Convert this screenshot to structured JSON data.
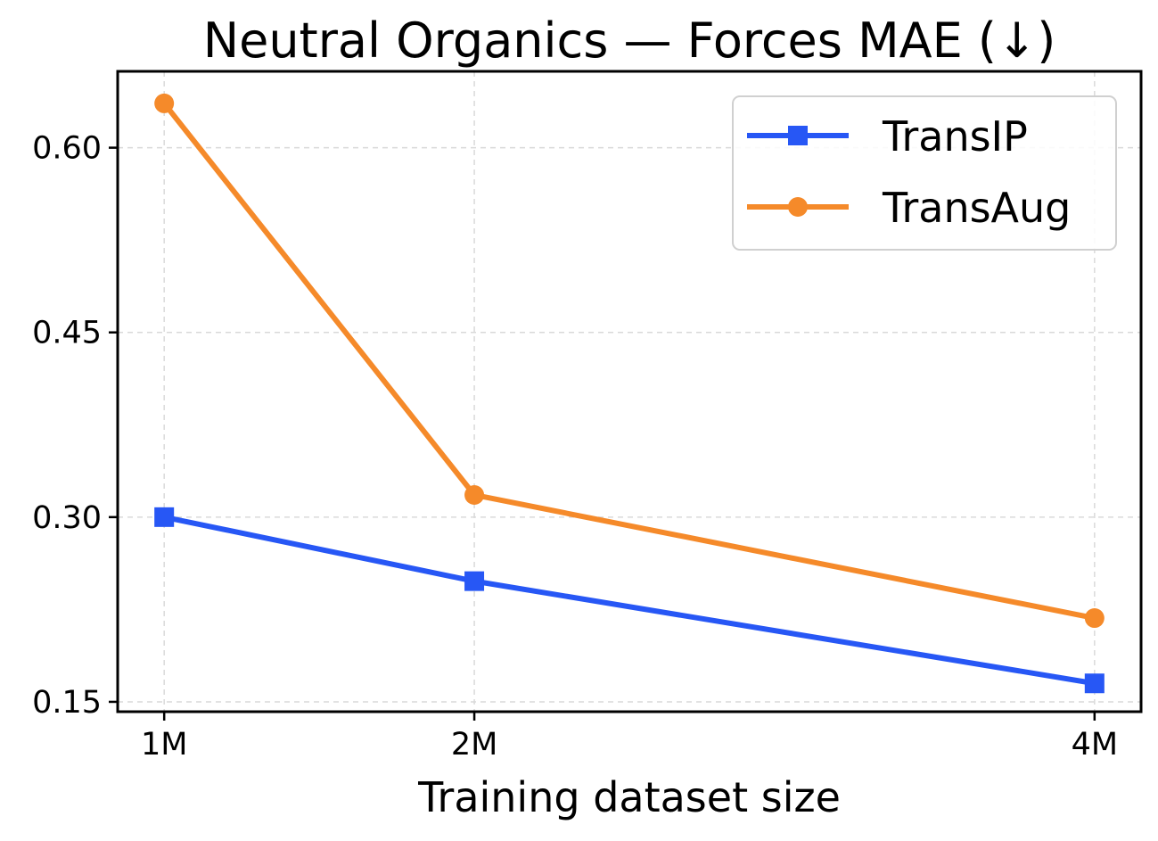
{
  "chart_data": {
    "type": "line",
    "title": "Neutral Organics — Forces MAE (↓)",
    "xlabel": "Training dataset size",
    "ylabel": "",
    "x": [
      1,
      2,
      4
    ],
    "x_tick_labels": [
      "1M",
      "2M",
      "4M"
    ],
    "xlim": [
      0.85,
      4.15
    ],
    "ylim": [
      0.142,
      0.662
    ],
    "y_ticks": [
      0.15,
      0.3,
      0.45,
      0.6
    ],
    "y_tick_labels": [
      "0.15",
      "0.30",
      "0.45",
      "0.60"
    ],
    "grid": true,
    "legend_position": "top-right",
    "series": [
      {
        "name": "TransIP",
        "marker": "square",
        "color": "#2757f5",
        "values": [
          0.3,
          0.248,
          0.165
        ]
      },
      {
        "name": "TransAug",
        "marker": "circle",
        "color": "#f58a2a",
        "values": [
          0.636,
          0.318,
          0.218
        ]
      }
    ]
  }
}
